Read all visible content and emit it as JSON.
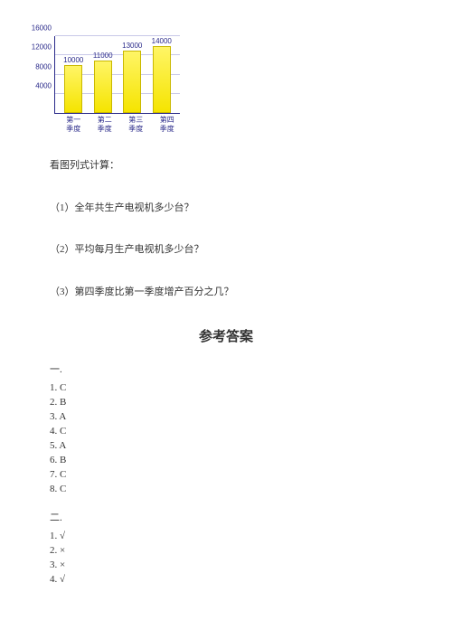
{
  "chart": {
    "type": "bar",
    "width": 138,
    "height": 85,
    "ymax": 16000,
    "yticks": [
      4000,
      8000,
      12000,
      16000
    ],
    "grid_color": "#c8c8e8",
    "axis_color": "#2a2a8a",
    "bar_fill_top": "#fff566",
    "bar_fill_bot": "#f5e400",
    "bar_border": "#c9b800",
    "categories": [
      "第一\n季度",
      "第二\n季度",
      "第三\n季度",
      "第四\n季度"
    ],
    "values": [
      10000,
      11000,
      13000,
      14000
    ]
  },
  "prompt": "看图列式计算：",
  "questions": {
    "q1": "（1）全年共生产电视机多少台？",
    "q2": "（2）平均每月生产电视机多少台？",
    "q3": "（3）第四季度比第一季度增产百分之几？"
  },
  "answer_title": "参考答案",
  "section1": {
    "label": "一.",
    "items": [
      "1. C",
      "2. B",
      "3. A",
      "4. C",
      "5. A",
      "6. B",
      "7. C",
      "8. C"
    ]
  },
  "section2": {
    "label": "二.",
    "items": [
      "1. √",
      "2. ×",
      "3. ×",
      "4. √"
    ]
  }
}
